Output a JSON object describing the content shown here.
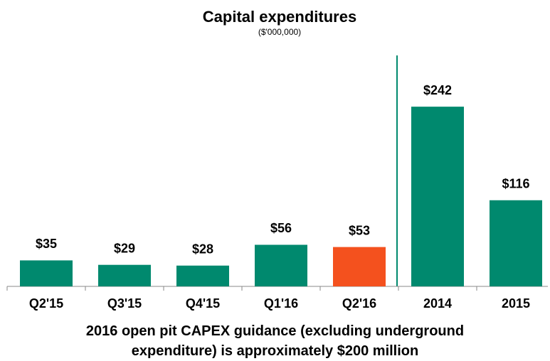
{
  "chart_data": {
    "type": "bar",
    "title": "Capital expenditures",
    "subtitle": "($'000,000)",
    "categories": [
      "Q2'15",
      "Q3'15",
      "Q4'15",
      "Q1'16",
      "Q2'16",
      "2014",
      "2015"
    ],
    "values": [
      35,
      29,
      28,
      56,
      53,
      242,
      116
    ],
    "value_labels": [
      "$35",
      "$29",
      "$28",
      "$56",
      "$53",
      "$242",
      "$116"
    ],
    "colors": [
      "#00896e",
      "#00896e",
      "#00896e",
      "#00896e",
      "#f4511e",
      "#00896e",
      "#00896e"
    ],
    "annotation": "2016 open pit CAPEX guidance (excluding underground expenditure) is approximately $200 million"
  }
}
